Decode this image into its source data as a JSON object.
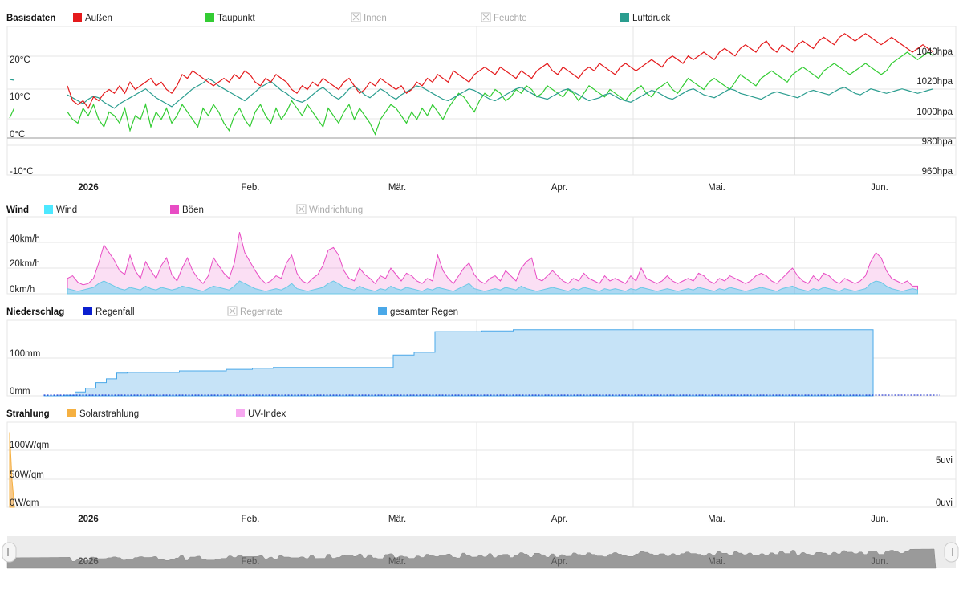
{
  "x_labels": [
    "2026",
    "Feb.",
    "Mär.",
    "Apr.",
    "Mai.",
    "Jun."
  ],
  "basis": {
    "title": "Basisdaten",
    "legend": [
      {
        "label": "Außen",
        "color": "#e41a1c",
        "enabled": true
      },
      {
        "label": "Taupunkt",
        "color": "#33cc33",
        "enabled": true
      },
      {
        "label": "Innen",
        "color": "#aaaaaa",
        "enabled": false
      },
      {
        "label": "Feuchte",
        "color": "#aaaaaa",
        "enabled": false
      },
      {
        "label": "Luftdruck",
        "color": "#2a9d8f",
        "enabled": true
      }
    ],
    "y_left": [
      "20°C",
      "10°C",
      "0°C",
      "-10°C"
    ],
    "y_right": [
      "1040hpa",
      "1020hpa",
      "1000hpa",
      "980hpa",
      "960hpa"
    ]
  },
  "wind": {
    "title": "Wind",
    "legend": [
      {
        "label": "Wind",
        "color": "#4de8ff",
        "enabled": true
      },
      {
        "label": "Böen",
        "color": "#e84cc4",
        "enabled": true
      },
      {
        "label": "Windrichtung",
        "color": "#aaaaaa",
        "enabled": false
      }
    ],
    "y_left": [
      "40km/h",
      "20km/h",
      "0km/h"
    ]
  },
  "rain": {
    "title": "Niederschlag",
    "legend": [
      {
        "label": "Regenfall",
        "color": "#0b1fcf",
        "enabled": true
      },
      {
        "label": "Regenrate",
        "color": "#aaaaaa",
        "enabled": false
      },
      {
        "label": "gesamter Regen",
        "color": "#4aa8e8",
        "enabled": true
      }
    ],
    "y_left": [
      "100mm",
      "0mm"
    ]
  },
  "solar": {
    "title": "Strahlung",
    "legend": [
      {
        "label": "Solarstrahlung",
        "color": "#f5b041",
        "enabled": true
      },
      {
        "label": "UV-Index",
        "color": "#f7a8f0",
        "enabled": true
      }
    ],
    "y_left": [
      "100W/qm",
      "50W/qm",
      "0W/qm"
    ],
    "y_right": [
      "5uvi",
      "0uvi"
    ]
  },
  "chart_data": [
    {
      "type": "line",
      "x_start": "2026-01-01",
      "x_end": "2026-06-16",
      "x_step": "1 day",
      "ylim": [
        -10,
        30
      ],
      "y2lim": [
        960,
        1060
      ],
      "series": [
        {
          "name": "Außen",
          "axis": "°C",
          "values": [
            14,
            10,
            9,
            10,
            8,
            11,
            10,
            12,
            13,
            12,
            14,
            12,
            15,
            13,
            14,
            15,
            16,
            14,
            15,
            13,
            12,
            14,
            17,
            16,
            18,
            17,
            16,
            15,
            14,
            15,
            16,
            15,
            17,
            16,
            18,
            17,
            15,
            14,
            16,
            15,
            17,
            16,
            15,
            13,
            12,
            14,
            13,
            15,
            14,
            16,
            15,
            14,
            13,
            15,
            16,
            14,
            12,
            13,
            15,
            14,
            16,
            15,
            14,
            13,
            14,
            12,
            13,
            15,
            14,
            16,
            15,
            17,
            16,
            15,
            18,
            17,
            16,
            15,
            17,
            18,
            19,
            18,
            17,
            19,
            18,
            17,
            16,
            18,
            17,
            16,
            18,
            19,
            20,
            18,
            17,
            19,
            18,
            17,
            16,
            18,
            19,
            18,
            20,
            19,
            18,
            17,
            19,
            20,
            19,
            18,
            19,
            20,
            21,
            20,
            19,
            21,
            22,
            21,
            20,
            22,
            21,
            22,
            23,
            22,
            21,
            23,
            24,
            23,
            22,
            24,
            25,
            24,
            23,
            25,
            26,
            24,
            23,
            25,
            24,
            23,
            25,
            26,
            25,
            24,
            26,
            27,
            26,
            25,
            27,
            28,
            27,
            26,
            27,
            28,
            27,
            26,
            25,
            26,
            27,
            26,
            25,
            24,
            23,
            24,
            25,
            24,
            23
          ]
        },
        {
          "name": "Taupunkt",
          "axis": "°C",
          "values": [
            7,
            5,
            4,
            8,
            6,
            9,
            5,
            3,
            7,
            6,
            4,
            8,
            2,
            6,
            5,
            9,
            3,
            7,
            5,
            8,
            4,
            6,
            9,
            7,
            5,
            3,
            8,
            6,
            9,
            7,
            4,
            2,
            6,
            8,
            5,
            3,
            7,
            9,
            6,
            4,
            8,
            5,
            7,
            10,
            8,
            6,
            9,
            7,
            5,
            3,
            8,
            6,
            4,
            7,
            9,
            5,
            8,
            6,
            4,
            1,
            5,
            7,
            9,
            8,
            6,
            4,
            7,
            5,
            8,
            6,
            9,
            7,
            5,
            8,
            10,
            12,
            11,
            9,
            7,
            10,
            12,
            11,
            13,
            12,
            10,
            11,
            13,
            12,
            14,
            13,
            11,
            12,
            14,
            13,
            12,
            11,
            13,
            12,
            10,
            12,
            14,
            13,
            12,
            11,
            13,
            12,
            11,
            10,
            12,
            13,
            14,
            12,
            11,
            13,
            14,
            15,
            13,
            12,
            14,
            16,
            15,
            14,
            13,
            15,
            16,
            15,
            14,
            13,
            15,
            17,
            16,
            15,
            14,
            16,
            17,
            18,
            17,
            16,
            15,
            17,
            18,
            19,
            18,
            17,
            16,
            18,
            19,
            20,
            19,
            18,
            17,
            18,
            19,
            20,
            19,
            18,
            17,
            18,
            20,
            21,
            22,
            23,
            22,
            21,
            22,
            23,
            22
          ]
        },
        {
          "name": "Luftdruck",
          "axis": "hpa",
          "values": [
            1014,
            1012,
            1010,
            1008,
            1011,
            1013,
            1012,
            1009,
            1007,
            1005,
            1008,
            1010,
            1012,
            1014,
            1016,
            1018,
            1015,
            1012,
            1010,
            1008,
            1006,
            1009,
            1012,
            1015,
            1018,
            1020,
            1022,
            1025,
            1023,
            1020,
            1018,
            1016,
            1014,
            1012,
            1010,
            1013,
            1016,
            1019,
            1021,
            1023,
            1020,
            1017,
            1015,
            1012,
            1010,
            1009,
            1011,
            1014,
            1017,
            1019,
            1016,
            1013,
            1011,
            1014,
            1018,
            1020,
            1017,
            1014,
            1012,
            1015,
            1018,
            1016,
            1013,
            1011,
            1014,
            1016,
            1018,
            1020,
            1019,
            1017,
            1015,
            1013,
            1011,
            1010,
            1012,
            1014,
            1016,
            1018,
            1017,
            1015,
            1013,
            1011,
            1010,
            1012,
            1014,
            1016,
            1018,
            1019,
            1017,
            1015,
            1013,
            1012,
            1011,
            1013,
            1015,
            1017,
            1018,
            1016,
            1014,
            1012,
            1010,
            1011,
            1012,
            1014,
            1015,
            1013,
            1011,
            1010,
            1009,
            1011,
            1013,
            1015,
            1017,
            1016,
            1014,
            1012,
            1011,
            1013,
            1015,
            1017,
            1018,
            1016,
            1014,
            1013,
            1012,
            1014,
            1016,
            1018,
            1017,
            1015,
            1014,
            1013,
            1012,
            1011,
            1013,
            1015,
            1016,
            1015,
            1014,
            1013,
            1012,
            1014,
            1016,
            1017,
            1016,
            1015,
            1014,
            1016,
            1018,
            1019,
            1017,
            1015,
            1014,
            1016,
            1018,
            1017,
            1016,
            1015,
            1016,
            1017,
            1018,
            1017,
            1016,
            1015,
            1016,
            1017,
            1018
          ]
        }
      ]
    },
    {
      "type": "area",
      "x_start": "2026-01-01",
      "x_end": "2026-06-16",
      "x_step": "1 day",
      "ylim": [
        0,
        50
      ],
      "series": [
        {
          "name": "Wind",
          "values": [
            4,
            3,
            2,
            3,
            4,
            5,
            8,
            10,
            8,
            6,
            4,
            3,
            5,
            4,
            3,
            6,
            4,
            3,
            5,
            4,
            3,
            4,
            6,
            5,
            4,
            3,
            2,
            4,
            6,
            5,
            4,
            3,
            6,
            10,
            8,
            6,
            4,
            3,
            2,
            3,
            4,
            3,
            5,
            8,
            4,
            3,
            2,
            3,
            4,
            5,
            8,
            10,
            8,
            5,
            4,
            3,
            6,
            4,
            3,
            2,
            4,
            3,
            6,
            4,
            3,
            5,
            4,
            3,
            2,
            4,
            3,
            5,
            4,
            3,
            2,
            4,
            6,
            8,
            4,
            3,
            2,
            3,
            4,
            3,
            5,
            4,
            3,
            6,
            4,
            3,
            2,
            3,
            4,
            5,
            4,
            3,
            2,
            4,
            3,
            5,
            4,
            3,
            2,
            4,
            3,
            4,
            3,
            2,
            4,
            3,
            5,
            4,
            3,
            2,
            3,
            4,
            3,
            2,
            3,
            4,
            3,
            5,
            4,
            3,
            2,
            4,
            3,
            5,
            4,
            3,
            2,
            3,
            4,
            5,
            4,
            3,
            2,
            4,
            5,
            6,
            4,
            3,
            2,
            4,
            3,
            5,
            4,
            3,
            2,
            4,
            3,
            2,
            3,
            4,
            8,
            10,
            9,
            6,
            4,
            3,
            2,
            3,
            4,
            3
          ]
        },
        {
          "name": "Böen",
          "values": [
            12,
            14,
            9,
            7,
            8,
            12,
            24,
            38,
            32,
            26,
            18,
            15,
            30,
            18,
            12,
            25,
            18,
            12,
            22,
            28,
            15,
            10,
            20,
            28,
            18,
            12,
            8,
            14,
            28,
            22,
            16,
            12,
            24,
            48,
            32,
            25,
            18,
            12,
            8,
            10,
            14,
            12,
            24,
            30,
            16,
            10,
            8,
            12,
            15,
            22,
            34,
            36,
            30,
            18,
            12,
            10,
            20,
            15,
            12,
            8,
            14,
            12,
            20,
            15,
            10,
            16,
            14,
            10,
            8,
            12,
            10,
            30,
            18,
            12,
            8,
            14,
            20,
            24,
            15,
            10,
            8,
            12,
            14,
            10,
            18,
            14,
            10,
            20,
            25,
            28,
            12,
            10,
            14,
            18,
            14,
            10,
            8,
            12,
            10,
            16,
            12,
            10,
            8,
            14,
            10,
            12,
            10,
            8,
            14,
            10,
            20,
            12,
            10,
            8,
            10,
            14,
            10,
            8,
            10,
            12,
            10,
            16,
            14,
            10,
            8,
            12,
            10,
            14,
            12,
            10,
            8,
            10,
            14,
            16,
            14,
            10,
            8,
            12,
            16,
            20,
            14,
            10,
            8,
            14,
            10,
            16,
            14,
            10,
            8,
            12,
            10,
            8,
            10,
            14,
            25,
            32,
            28,
            18,
            12,
            10,
            8,
            10,
            6,
            6
          ]
        }
      ]
    },
    {
      "type": "area",
      "x_start": "2026-01-08",
      "x_end": "2026-06-16",
      "ylim": [
        0,
        200
      ],
      "series": [
        {
          "name": "gesamter Regen",
          "points": [
            [
              "2026-01-08",
              0
            ],
            [
              "2026-01-12",
              2
            ],
            [
              "2026-01-14",
              10
            ],
            [
              "2026-01-16",
              20
            ],
            [
              "2026-01-18",
              35
            ],
            [
              "2026-01-20",
              45
            ],
            [
              "2026-01-22",
              60
            ],
            [
              "2026-01-24",
              62
            ],
            [
              "2026-02-03",
              66
            ],
            [
              "2026-02-12",
              70
            ],
            [
              "2026-02-17",
              73
            ],
            [
              "2026-02-21",
              75
            ],
            [
              "2026-03-14",
              75
            ],
            [
              "2026-03-16",
              108
            ],
            [
              "2026-03-20",
              115
            ],
            [
              "2026-03-24",
              170
            ],
            [
              "2026-04-02",
              172
            ],
            [
              "2026-04-08",
              175
            ],
            [
              "2026-06-16",
              175
            ]
          ]
        },
        {
          "name": "Regenfall",
          "points": [
            [
              "2026-01-08",
              0
            ],
            [
              "2026-06-16",
              0
            ]
          ]
        }
      ]
    },
    {
      "type": "area",
      "x_start": "2026-01-01",
      "x_end": "2026-06-16",
      "ylim": [
        0,
        120
      ],
      "series": [
        {
          "name": "Solarstrahlung",
          "points": [
            [
              "2026-01-01",
              110
            ],
            [
              "2026-01-02",
              40
            ],
            [
              "2026-01-03",
              0
            ],
            [
              "2026-06-16",
              0
            ]
          ]
        },
        {
          "name": "UV-Index",
          "points": [
            [
              "2026-01-01",
              0
            ],
            [
              "2026-06-16",
              0
            ]
          ]
        }
      ]
    }
  ]
}
